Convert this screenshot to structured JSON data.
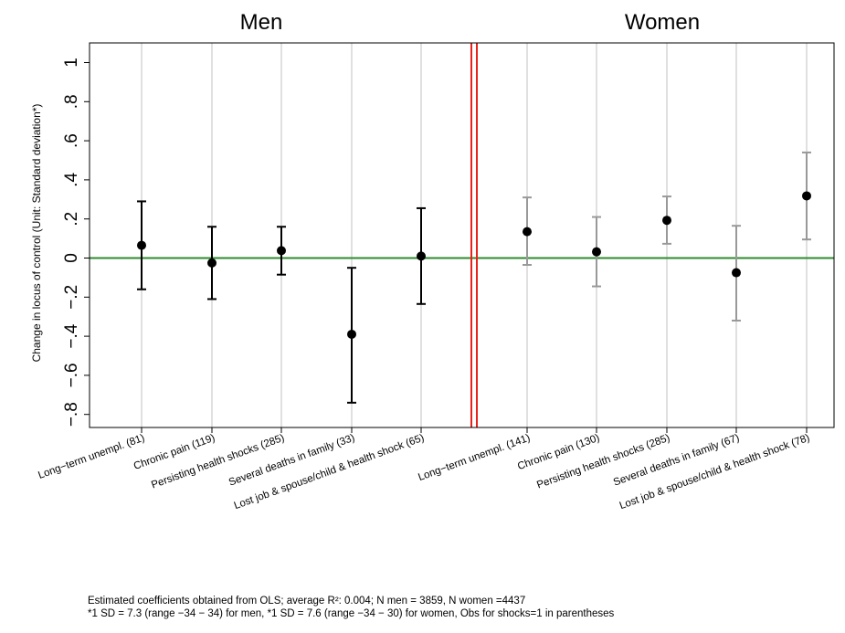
{
  "chart_data": {
    "type": "scatter",
    "subtype": "coefficient plot with 95% confidence intervals",
    "panels": [
      "Men",
      "Women"
    ],
    "ylabel": "Change in locus of control (Unit: Standard deviation*)",
    "ylim": [
      -0.85,
      1.05
    ],
    "yticks": [
      1,
      0.8,
      0.6,
      0.4,
      0.2,
      0,
      -0.2,
      -0.4,
      -0.6,
      -0.8
    ],
    "ytick_labels": [
      "1",
      ".8",
      ".6",
      ".4",
      ".2",
      "0",
      "−.2",
      "−.4",
      "−.6",
      "−.8"
    ],
    "reference_line": {
      "y": 0,
      "color": "#2e8b2e"
    },
    "divider_color": "#e8211a",
    "vertical_grid": true,
    "categories": [
      "Long−term unempl. (81)",
      "Chronic pain (119)",
      "Persisting health shocks (285)",
      "Several deaths in family (33)",
      "Lost job & spouse/child & health shock (65)",
      "Long−term unempl. (141)",
      "Chronic pain (130)",
      "Persisting health shocks (285)",
      "Several deaths in family (67)",
      "Lost job & spouse/child & health shock (78)"
    ],
    "series": [
      {
        "name": "Men",
        "color": "#000000",
        "estimate": [
          0.065,
          -0.025,
          0.038,
          -0.39,
          0.01
        ],
        "ci_low": [
          -0.16,
          -0.21,
          -0.085,
          -0.74,
          -0.235
        ],
        "ci_high": [
          0.29,
          0.16,
          0.16,
          -0.05,
          0.255
        ]
      },
      {
        "name": "Women",
        "color": "#999999",
        "estimate": [
          0.135,
          0.032,
          0.193,
          -0.075,
          0.318
        ],
        "ci_low": [
          -0.035,
          -0.145,
          0.073,
          -0.32,
          0.095
        ],
        "ci_high": [
          0.31,
          0.21,
          0.315,
          0.165,
          0.54
        ]
      }
    ]
  },
  "notes": {
    "line1": "Estimated coefficients obtained from OLS; average R²: 0.004; N men = 3859, N women =4437",
    "line2": "*1 SD = 7.3 (range −34 − 34) for men, *1 SD = 7.6 (range −34 − 30) for women, Obs for shocks=1 in parentheses"
  }
}
